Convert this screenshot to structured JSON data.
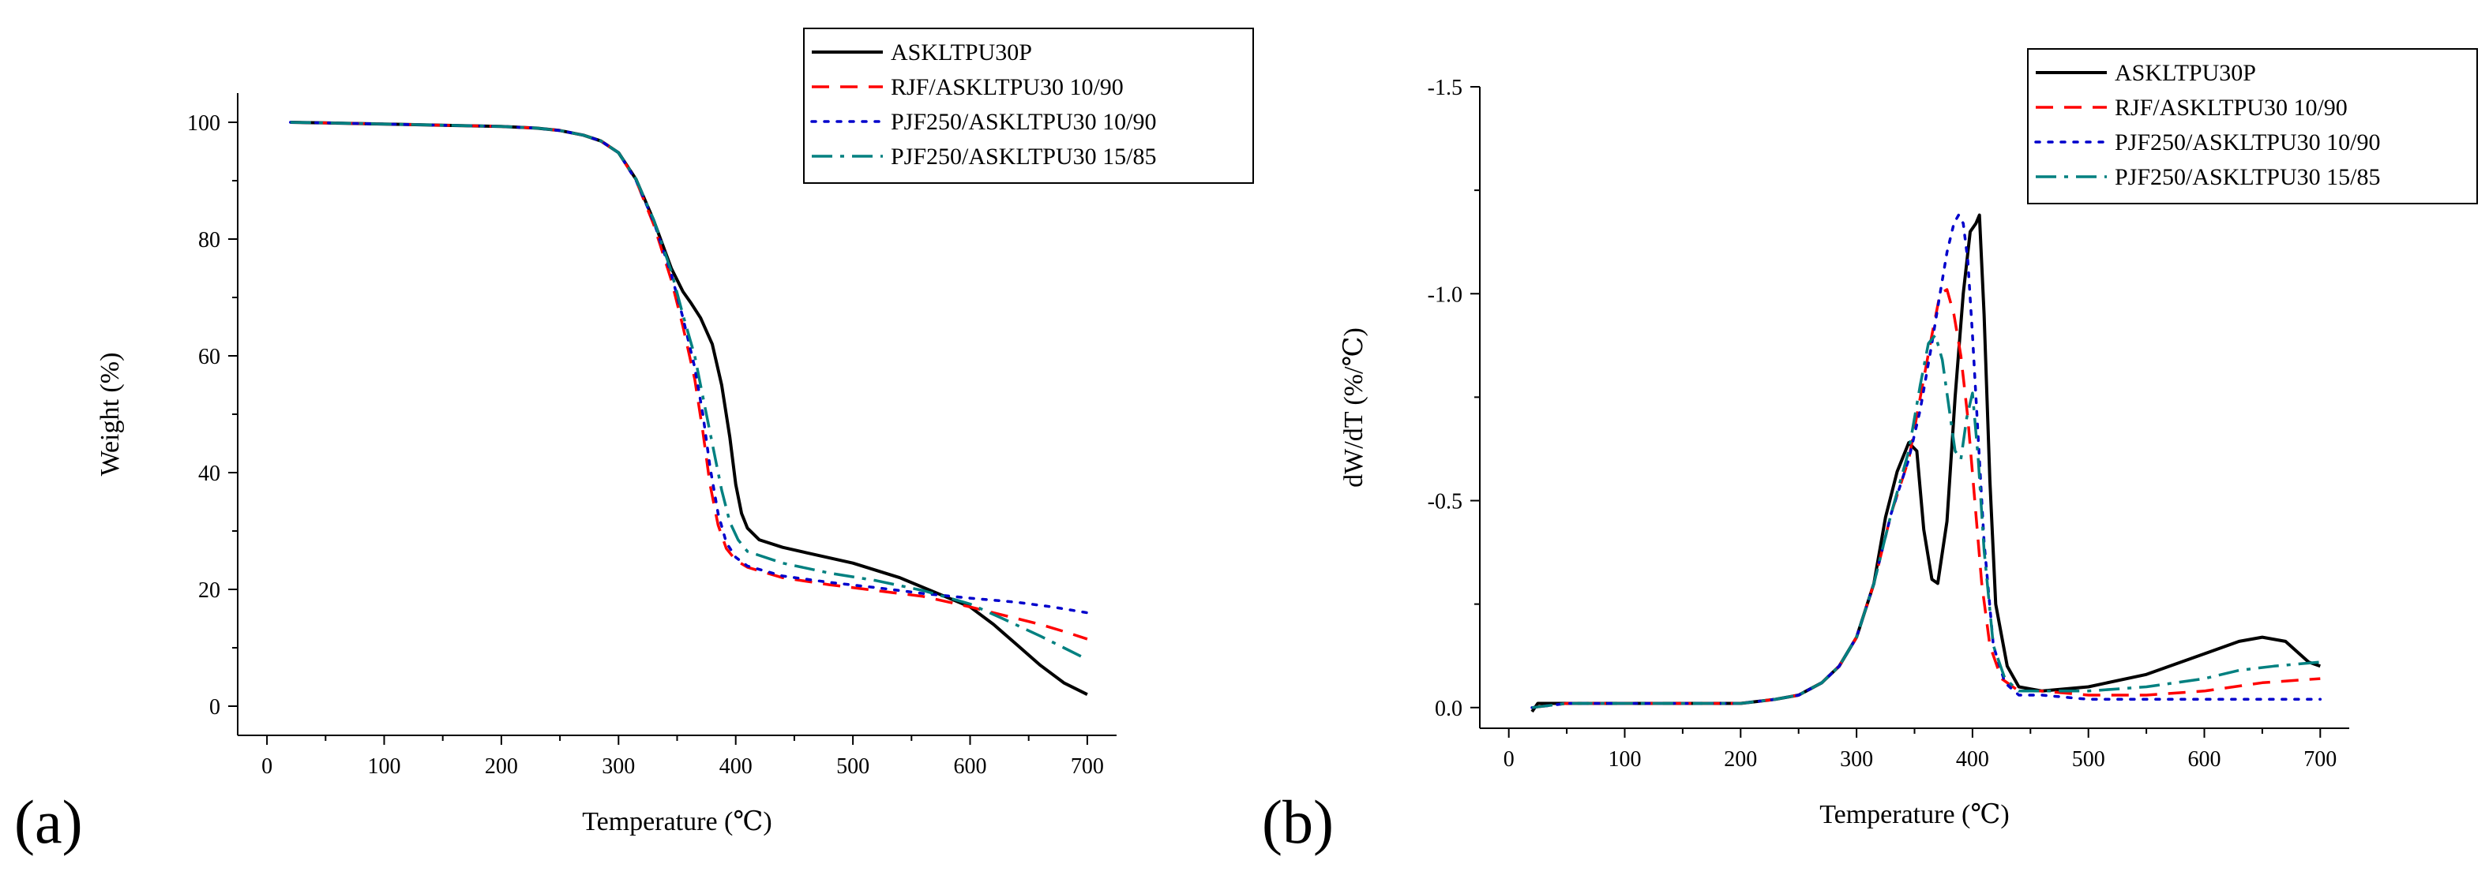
{
  "figure": {
    "background": "#ffffff",
    "series_colors": {
      "ASKLTPU30P": "#000000",
      "RJF/ASKLTPU30 10/90": "#ff0000",
      "PJF250/ASKLTPU30 10/90": "#0000cc",
      "PJF250/ASKLTPU30 15/85": "#008080"
    }
  },
  "chart_data": [
    {
      "panel": "(a)",
      "type": "line",
      "title": "",
      "xlabel": "Temperature (℃)",
      "ylabel": "Weight (%)",
      "xlim": [
        -25,
        725
      ],
      "ylim": [
        -5,
        105
      ],
      "xticks": [
        0,
        100,
        200,
        300,
        400,
        500,
        600,
        700
      ],
      "yticks": [
        0,
        20,
        40,
        60,
        80,
        100
      ],
      "legend_position": "top-right",
      "grid": false,
      "series": [
        {
          "name": "ASKLTPU30P",
          "color": "#000000",
          "style": "solid",
          "x": [
            20,
            50,
            100,
            150,
            200,
            230,
            250,
            270,
            285,
            300,
            315,
            330,
            345,
            355,
            362,
            370,
            380,
            388,
            395,
            400,
            405,
            410,
            420,
            440,
            460,
            500,
            540,
            570,
            600,
            620,
            640,
            660,
            680,
            700
          ],
          "y": [
            100,
            99.9,
            99.7,
            99.5,
            99.3,
            99.0,
            98.6,
            97.8,
            96.8,
            94.8,
            90.2,
            83.2,
            75.0,
            71.0,
            69.0,
            66.5,
            62.0,
            55.0,
            46.0,
            38.0,
            33.0,
            30.5,
            28.5,
            27.2,
            26.3,
            24.5,
            22.0,
            19.5,
            17.0,
            14.0,
            10.5,
            7.0,
            4.0,
            2.0
          ]
        },
        {
          "name": "RJF/ASKLTPU30 10/90",
          "color": "#ff0000",
          "style": "dashed",
          "x": [
            20,
            50,
            100,
            150,
            200,
            230,
            250,
            270,
            285,
            300,
            315,
            330,
            345,
            355,
            365,
            372,
            378,
            385,
            392,
            400,
            410,
            440,
            480,
            520,
            560,
            600,
            630,
            660,
            680,
            700
          ],
          "y": [
            100,
            99.9,
            99.7,
            99.5,
            99.3,
            99.0,
            98.6,
            97.8,
            96.8,
            94.8,
            90.0,
            82.5,
            73.0,
            65.0,
            56.0,
            47.0,
            38.0,
            31.0,
            27.0,
            25.0,
            23.8,
            22.0,
            20.8,
            19.8,
            18.8,
            17.0,
            15.5,
            14.0,
            12.8,
            11.5
          ]
        },
        {
          "name": "PJF250/ASKLTPU30 10/90",
          "color": "#0000cc",
          "style": "dotted",
          "x": [
            20,
            50,
            100,
            150,
            200,
            230,
            250,
            270,
            285,
            300,
            315,
            330,
            345,
            355,
            365,
            372,
            378,
            385,
            392,
            400,
            410,
            440,
            480,
            520,
            560,
            600,
            640,
            670,
            700
          ],
          "y": [
            100,
            99.9,
            99.7,
            99.5,
            99.3,
            99.0,
            98.6,
            97.8,
            96.8,
            94.8,
            90.0,
            83.0,
            74.0,
            66.5,
            58.0,
            50.0,
            41.0,
            33.0,
            28.0,
            25.5,
            24.0,
            22.3,
            21.2,
            20.3,
            19.3,
            18.5,
            17.8,
            17.0,
            16.0
          ]
        },
        {
          "name": "PJF250/ASKLTPU30 15/85",
          "color": "#008080",
          "style": "dashdot",
          "x": [
            20,
            50,
            100,
            150,
            200,
            230,
            250,
            270,
            285,
            300,
            315,
            330,
            345,
            355,
            365,
            372,
            380,
            388,
            395,
            402,
            410,
            440,
            480,
            520,
            560,
            600,
            630,
            660,
            680,
            700
          ],
          "y": [
            100,
            99.9,
            99.7,
            99.5,
            99.3,
            99.0,
            98.6,
            97.8,
            96.8,
            94.8,
            90.2,
            83.3,
            74.5,
            67.0,
            60.0,
            53.0,
            45.0,
            37.0,
            31.5,
            28.5,
            26.5,
            24.5,
            22.8,
            21.5,
            19.8,
            17.5,
            14.8,
            12.0,
            10.0,
            8.0
          ]
        }
      ]
    },
    {
      "panel": "(b)",
      "type": "line",
      "title": "",
      "xlabel": "Temperature (℃)",
      "ylabel": "dW/dT (%/℃)",
      "xlim": [
        -25,
        725
      ],
      "ylim": [
        0.05,
        -1.5
      ],
      "y_axis_inverted": true,
      "xticks": [
        0,
        100,
        200,
        300,
        400,
        500,
        600,
        700
      ],
      "yticks": [
        0.0,
        -0.5,
        -1.0,
        -1.5
      ],
      "ytick_labels": [
        "0.0",
        "-0.5",
        "-1.0",
        "-1.5"
      ],
      "legend_position": "top-right",
      "grid": false,
      "series": [
        {
          "name": "ASKLTPU30P",
          "color": "#000000",
          "style": "solid",
          "x": [
            20,
            25,
            30,
            50,
            100,
            150,
            200,
            230,
            250,
            270,
            285,
            300,
            315,
            325,
            335,
            345,
            352,
            358,
            365,
            370,
            378,
            385,
            392,
            398,
            403,
            406,
            410,
            415,
            420,
            430,
            440,
            460,
            500,
            550,
            600,
            630,
            650,
            670,
            690,
            700
          ],
          "y": [
            0.01,
            -0.01,
            -0.01,
            -0.01,
            -0.01,
            -0.01,
            -0.01,
            -0.02,
            -0.03,
            -0.06,
            -0.1,
            -0.17,
            -0.3,
            -0.46,
            -0.57,
            -0.64,
            -0.62,
            -0.43,
            -0.31,
            -0.3,
            -0.45,
            -0.75,
            -1.0,
            -1.15,
            -1.17,
            -1.19,
            -0.95,
            -0.55,
            -0.25,
            -0.1,
            -0.05,
            -0.04,
            -0.05,
            -0.08,
            -0.13,
            -0.16,
            -0.17,
            -0.16,
            -0.11,
            -0.1
          ]
        },
        {
          "name": "RJF/ASKLTPU30 10/90",
          "color": "#ff0000",
          "style": "dashed",
          "x": [
            20,
            50,
            100,
            150,
            200,
            230,
            250,
            270,
            285,
            300,
            315,
            330,
            345,
            355,
            365,
            372,
            378,
            384,
            390,
            396,
            402,
            408,
            415,
            425,
            440,
            460,
            500,
            550,
            600,
            650,
            700
          ],
          "y": [
            0.0,
            -0.01,
            -0.01,
            -0.01,
            -0.01,
            -0.02,
            -0.03,
            -0.06,
            -0.1,
            -0.17,
            -0.3,
            -0.47,
            -0.6,
            -0.75,
            -0.9,
            -1.0,
            -1.01,
            -0.95,
            -0.85,
            -0.7,
            -0.5,
            -0.3,
            -0.15,
            -0.07,
            -0.04,
            -0.04,
            -0.03,
            -0.03,
            -0.04,
            -0.06,
            -0.07
          ]
        },
        {
          "name": "PJF250/ASKLTPU30 10/90",
          "color": "#0000cc",
          "style": "dotted",
          "x": [
            20,
            50,
            100,
            150,
            200,
            230,
            250,
            270,
            285,
            300,
            315,
            330,
            345,
            355,
            365,
            372,
            378,
            384,
            388,
            392,
            396,
            400,
            405,
            410,
            418,
            428,
            440,
            460,
            500,
            550,
            600,
            650,
            700
          ],
          "y": [
            0.0,
            -0.01,
            -0.01,
            -0.01,
            -0.01,
            -0.02,
            -0.03,
            -0.06,
            -0.1,
            -0.17,
            -0.3,
            -0.47,
            -0.6,
            -0.72,
            -0.88,
            -1.0,
            -1.1,
            -1.17,
            -1.19,
            -1.17,
            -1.08,
            -0.9,
            -0.65,
            -0.4,
            -0.15,
            -0.06,
            -0.03,
            -0.03,
            -0.02,
            -0.02,
            -0.02,
            -0.02,
            -0.02
          ]
        },
        {
          "name": "PJF250/ASKLTPU30 15/85",
          "color": "#008080",
          "style": "dashdot",
          "x": [
            20,
            50,
            100,
            150,
            200,
            230,
            250,
            270,
            285,
            300,
            315,
            330,
            345,
            355,
            362,
            368,
            374,
            380,
            385,
            390,
            395,
            400,
            405,
            410,
            418,
            428,
            440,
            460,
            500,
            550,
            600,
            630,
            660,
            700
          ],
          "y": [
            0.0,
            -0.01,
            -0.01,
            -0.01,
            -0.01,
            -0.02,
            -0.03,
            -0.06,
            -0.1,
            -0.17,
            -0.3,
            -0.47,
            -0.62,
            -0.78,
            -0.88,
            -0.9,
            -0.84,
            -0.72,
            -0.62,
            -0.6,
            -0.7,
            -0.76,
            -0.6,
            -0.38,
            -0.15,
            -0.07,
            -0.04,
            -0.04,
            -0.04,
            -0.05,
            -0.07,
            -0.09,
            -0.1,
            -0.11
          ]
        }
      ]
    }
  ]
}
